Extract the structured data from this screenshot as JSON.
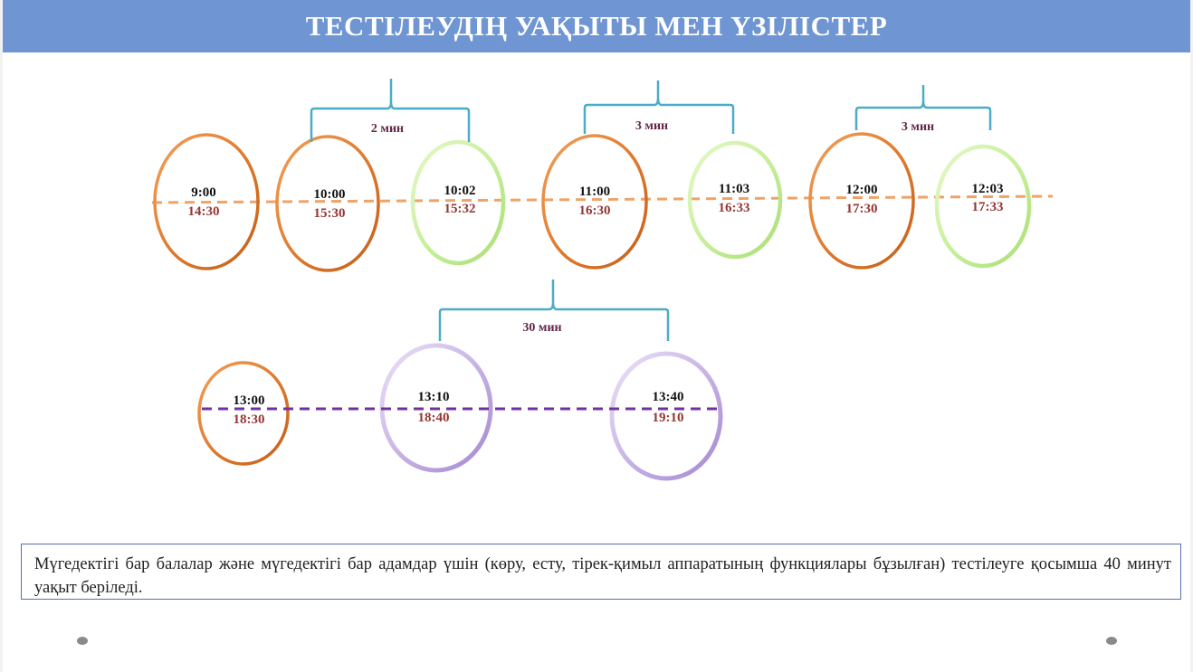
{
  "title": "ТЕСТІЛЕУДІҢ УАҚЫТЫ МЕН ҮЗІЛІСТЕР",
  "row1": {
    "slots": [
      {
        "primary": "9:00",
        "secondary": "14:30",
        "kind": "session"
      },
      {
        "primary": "10:00",
        "secondary": "15:30",
        "kind": "session"
      },
      {
        "primary": "10:02",
        "secondary": "15:32",
        "kind": "break"
      },
      {
        "primary": "11:00",
        "secondary": "16:30",
        "kind": "session"
      },
      {
        "primary": "11:03",
        "secondary": "16:33",
        "kind": "break"
      },
      {
        "primary": "12:00",
        "secondary": "17:30",
        "kind": "session"
      },
      {
        "primary": "12:03",
        "secondary": "17:33",
        "kind": "break"
      }
    ],
    "gaps": [
      "2 мин",
      "3 мин",
      "3 мин"
    ]
  },
  "row2": {
    "slots": [
      {
        "primary": "13:00",
        "secondary": "18:30",
        "kind": "session"
      },
      {
        "primary": "13:10",
        "secondary": "18:40",
        "kind": "long-break"
      },
      {
        "primary": "13:40",
        "secondary": "19:10",
        "kind": "long-break"
      }
    ],
    "gaps": [
      "30 мин"
    ]
  },
  "note": "Мүгедектігі бар балалар және мүгедектігі бар адамдар үшін (көру, есту, тірек-қимыл аппаратының функциялары бұзылған) тестілеуге қосымша 40 минут уақыт беріледі.",
  "colors": {
    "header": "#6f95d3",
    "session_ring": "#e07b2e",
    "break_ring": "#c8ef9c",
    "long_break_ring": "#c8b4e6",
    "row1_line": "#f0a366",
    "row2_line": "#7030a0",
    "brace": "#4bacc6",
    "primary_text": "#111111",
    "secondary_text": "#943634",
    "gap_text": "#632548"
  }
}
